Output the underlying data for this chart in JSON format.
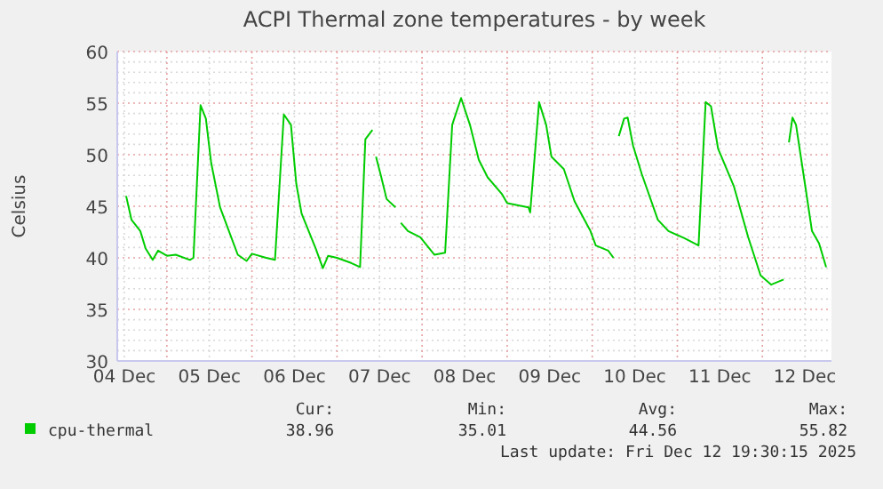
{
  "chart_data": {
    "type": "line",
    "title": "ACPI Thermal zone temperatures - by week",
    "ylabel": "Celsius",
    "xlim": [
      "2025-12-04T10:00",
      "2025-12-12T19:30"
    ],
    "xticks": [
      {
        "value": "2025-12-04T12:00",
        "label": "04 Dec"
      },
      {
        "value": "2025-12-05T00:00",
        "label": null
      },
      {
        "value": "2025-12-05T12:00",
        "label": "05 Dec"
      },
      {
        "value": "2025-12-06T00:00",
        "label": null
      },
      {
        "value": "2025-12-06T12:00",
        "label": "06 Dec"
      },
      {
        "value": "2025-12-07T00:00",
        "label": null
      },
      {
        "value": "2025-12-07T12:00",
        "label": "07 Dec"
      },
      {
        "value": "2025-12-08T00:00",
        "label": null
      },
      {
        "value": "2025-12-08T12:00",
        "label": "08 Dec"
      },
      {
        "value": "2025-12-09T00:00",
        "label": null
      },
      {
        "value": "2025-12-09T12:00",
        "label": "09 Dec"
      },
      {
        "value": "2025-12-10T00:00",
        "label": null
      },
      {
        "value": "2025-12-10T12:00",
        "label": "10 Dec"
      },
      {
        "value": "2025-12-11T00:00",
        "label": null
      },
      {
        "value": "2025-12-11T12:00",
        "label": "11 Dec"
      },
      {
        "value": "2025-12-12T00:00",
        "label": null
      },
      {
        "value": "2025-12-12T12:00",
        "label": "12 Dec"
      }
    ],
    "ylim": [
      30,
      60
    ],
    "yticks": [
      30,
      {
        "value": 31,
        "label": null
      },
      {
        "value": 32,
        "label": null
      },
      {
        "value": 33,
        "label": null
      },
      {
        "value": 34,
        "label": null
      },
      35,
      {
        "value": 36,
        "label": null
      },
      {
        "value": 37,
        "label": null
      },
      {
        "value": 38,
        "label": null
      },
      {
        "value": 39,
        "label": null
      },
      40,
      {
        "value": 41,
        "label": null
      },
      {
        "value": 42,
        "label": null
      },
      {
        "value": 43,
        "label": null
      },
      {
        "value": 44,
        "label": null
      },
      45,
      {
        "value": 46,
        "label": null
      },
      {
        "value": 47,
        "label": null
      },
      {
        "value": 48,
        "label": null
      },
      {
        "value": 49,
        "label": null
      },
      50,
      {
        "value": 51,
        "label": null
      },
      {
        "value": 52,
        "label": null
      },
      {
        "value": 53,
        "label": null
      },
      {
        "value": 54,
        "label": null
      },
      55,
      {
        "value": 56,
        "label": null
      },
      {
        "value": 57,
        "label": null
      },
      {
        "value": 58,
        "label": null
      },
      {
        "value": 59,
        "label": null
      },
      60
    ],
    "grid": true,
    "legend": "bottom left",
    "line_style": "solid",
    "annotations": [
      "Cur:",
      "Min:",
      "Avg:",
      "Max:",
      "38.96",
      "35.01",
      "44.56",
      "55.82",
      "Last update: Fri Dec 12 19:30:15 2025"
    ],
    "series": [
      {
        "name": "cpu-thermal",
        "color": "#00cc00",
        "x": [
          "2025-12-04T12:30",
          "2025-12-04T14:00",
          "2025-12-04T16:30",
          "2025-12-04T18:00",
          "2025-12-04T20:00",
          "2025-12-04T21:30",
          "2025-12-05T00:00",
          "2025-12-05T02:30",
          "2025-12-05T06:30",
          "2025-12-05T07:30",
          "2025-12-05T09:30",
          "2025-12-05T11:00",
          "2025-12-05T12:30",
          "2025-12-05T15:00",
          "2025-12-05T17:30",
          "2025-12-05T20:00",
          "2025-12-05T22:30",
          "2025-12-06T00:00",
          "2025-12-06T04:00",
          "2025-12-06T06:30",
          "2025-12-06T09:00",
          "2025-12-06T11:00",
          "2025-12-06T12:30",
          "2025-12-06T14:00",
          "2025-12-06T18:00",
          "2025-12-06T20:00",
          "2025-12-06T21:30",
          "2025-12-07T00:00",
          "2025-12-07T04:00",
          "2025-12-07T06:30",
          "2025-12-07T08:00",
          "2025-12-07T10:00",
          "2025-12-07T10:30",
          "2025-12-07T11:00",
          "2025-12-07T12:30",
          "2025-12-07T14:00",
          "2025-12-07T16:30",
          "2025-12-07T17:00",
          "2025-12-07T18:00",
          "2025-12-07T20:00",
          "2025-12-07T23:30",
          "2025-12-08T03:30",
          "2025-12-08T06:30",
          "2025-12-08T08:30",
          "2025-12-08T11:00",
          "2025-12-08T13:30",
          "2025-12-08T16:00",
          "2025-12-08T18:30",
          "2025-12-08T22:30",
          "2025-12-09T00:00",
          "2025-12-09T06:00",
          "2025-12-09T06:30",
          "2025-12-09T09:00",
          "2025-12-09T11:00",
          "2025-12-09T12:30",
          "2025-12-09T16:00",
          "2025-12-09T19:00",
          "2025-12-09T23:30",
          "2025-12-10T01:00",
          "2025-12-10T04:30",
          "2025-12-10T06:00",
          "2025-12-10T06:30",
          "2025-12-10T07:30",
          "2025-12-10T09:00",
          "2025-12-10T10:00",
          "2025-12-10T11:30",
          "2025-12-10T14:00",
          "2025-12-10T18:30",
          "2025-12-10T21:30",
          "2025-12-11T02:00",
          "2025-12-11T06:00",
          "2025-12-11T08:00",
          "2025-12-11T09:30",
          "2025-12-11T11:30",
          "2025-12-11T16:00",
          "2025-12-11T20:00",
          "2025-12-11T23:30",
          "2025-12-12T02:30",
          "2025-12-12T06:00",
          "2025-12-12T06:30",
          "2025-12-12T07:30",
          "2025-12-12T08:30",
          "2025-12-12T09:30",
          "2025-12-12T12:00",
          "2025-12-12T14:00",
          "2025-12-12T16:00",
          "2025-12-12T18:00"
        ],
        "values": [
          46.0,
          43.7,
          42.6,
          40.9,
          39.8,
          40.7,
          40.2,
          40.3,
          39.8,
          40.0,
          54.8,
          53.5,
          49.2,
          44.9,
          42.6,
          40.3,
          39.7,
          40.4,
          40.0,
          39.8,
          53.9,
          52.9,
          47.2,
          44.3,
          40.9,
          39.0,
          40.2,
          40.0,
          39.5,
          39.1,
          51.5,
          52.4,
          null,
          49.8,
          47.8,
          45.7,
          44.9,
          null,
          43.4,
          42.6,
          42.0,
          40.3,
          40.5,
          52.9,
          55.5,
          52.9,
          49.5,
          47.8,
          46.2,
          45.3,
          44.9,
          44.4,
          55.1,
          52.9,
          49.8,
          48.6,
          45.5,
          42.6,
          41.2,
          40.7,
          40.0,
          null,
          51.8,
          53.5,
          53.6,
          50.9,
          48.1,
          43.7,
          42.6,
          41.9,
          41.2,
          55.1,
          54.7,
          50.6,
          46.9,
          42.0,
          38.3,
          37.4,
          37.9,
          null,
          51.2,
          53.6,
          52.9,
          47.2,
          42.6,
          41.4,
          39.1
        ]
      }
    ]
  }
}
